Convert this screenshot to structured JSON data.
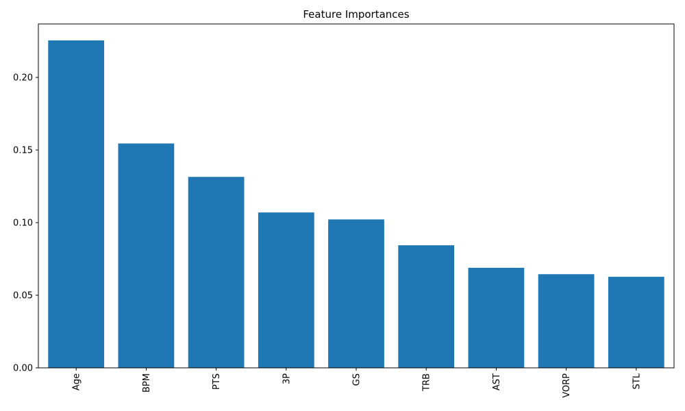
{
  "chart_data": {
    "type": "bar",
    "title": "Feature Importances",
    "xlabel": "",
    "ylabel": "",
    "categories": [
      "Age",
      "BPM",
      "PTS",
      "3P",
      "GS",
      "TRB",
      "AST",
      "VORP",
      "STL"
    ],
    "values": [
      0.2255,
      0.1545,
      0.1315,
      0.107,
      0.1022,
      0.0844,
      0.0689,
      0.0645,
      0.0627
    ],
    "ylim": [
      0,
      0.2368
    ],
    "yticks": [
      0.0,
      0.05,
      0.1,
      0.15,
      0.2
    ],
    "ytick_labels": [
      "0.00",
      "0.05",
      "0.10",
      "0.15",
      "0.20"
    ],
    "bar_color": "#1f77b4",
    "grid": false,
    "legend": "none"
  }
}
